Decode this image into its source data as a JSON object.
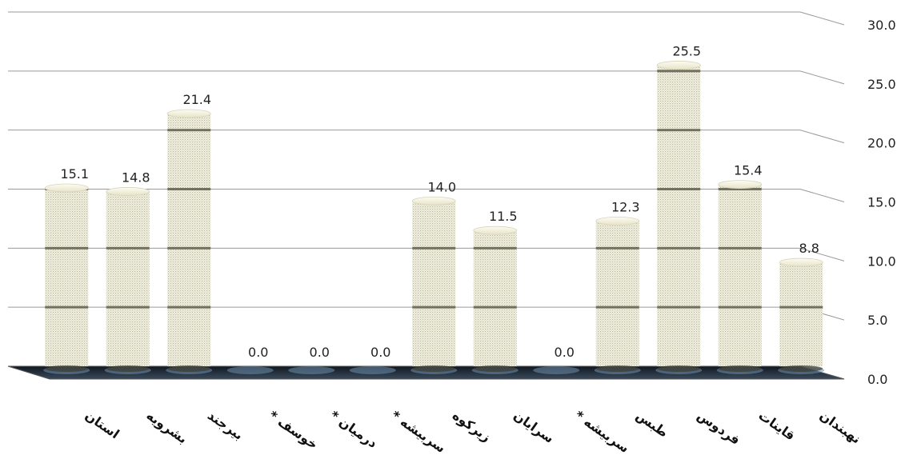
{
  "chart_data": {
    "type": "bar",
    "categories": [
      "استان",
      "بشرويه",
      "بيرجند",
      "خوسف *",
      "درميان *",
      "سربيشه *",
      "زيركوه",
      "سرايان",
      "سربيشه *",
      "طبس",
      "فردوس",
      "قاينات",
      "نهبندان"
    ],
    "values": [
      15.1,
      14.8,
      21.4,
      0.0,
      0.0,
      0.0,
      14.0,
      11.5,
      0.0,
      12.3,
      25.5,
      15.4,
      8.8
    ],
    "value_labels": [
      "15.1",
      "14.8",
      "21.4",
      "0.0",
      "0.0",
      "0.0",
      "14.0",
      "11.5",
      "0.0",
      "12.3",
      "25.5",
      "15.4",
      "8.8"
    ],
    "ylim": [
      0,
      30
    ],
    "yticks": [
      0,
      5,
      10,
      15,
      20,
      25,
      30
    ],
    "ytick_labels": [
      "0.0",
      "5.0",
      "10.0",
      "15.0",
      "20.0",
      "25.0",
      "30.0"
    ],
    "grid": true,
    "style": "3d-cylinder",
    "colors": {
      "bar_fill": "#f1efdb",
      "bar_dots": "#c9c6ae",
      "gridline": "#9a9a9a",
      "floor": "#1e2733",
      "floor_base": "#6f8fae"
    }
  }
}
